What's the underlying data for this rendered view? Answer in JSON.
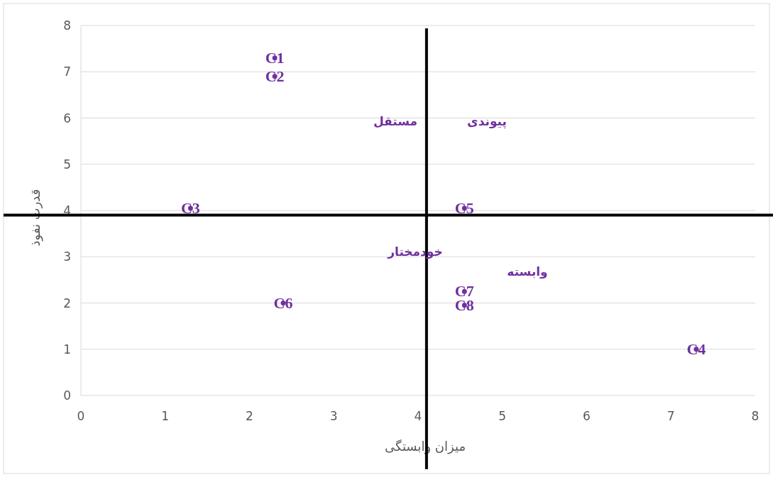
{
  "chart_data": {
    "type": "scatter",
    "xlabel": "میزان وابستگی",
    "ylabel": "قدرت نفوذ",
    "xlim": [
      0,
      8
    ],
    "ylim": [
      0,
      8
    ],
    "xticks": [
      0,
      1,
      2,
      3,
      4,
      5,
      6,
      7,
      8
    ],
    "yticks": [
      0,
      1,
      2,
      3,
      4,
      5,
      6,
      7,
      8
    ],
    "grid": "y",
    "marker": "circle",
    "series": [
      {
        "name": "C1",
        "color": "#7030a0",
        "x": [
          2.3
        ],
        "values": [
          7.3
        ]
      },
      {
        "name": "C2",
        "color": "#7030a0",
        "x": [
          2.3
        ],
        "values": [
          6.9
        ]
      },
      {
        "name": "C3",
        "color": "#7030a0",
        "x": [
          1.3
        ],
        "values": [
          4.05
        ]
      },
      {
        "name": "C4",
        "color": "#7030a0",
        "x": [
          7.3
        ],
        "values": [
          1.0
        ]
      },
      {
        "name": "C5",
        "color": "#7030a0",
        "x": [
          4.55
        ],
        "values": [
          4.05
        ]
      },
      {
        "name": "C6",
        "color": "#7030a0",
        "x": [
          2.4
        ],
        "values": [
          2.0
        ]
      },
      {
        "name": "C7",
        "color": "#7030a0",
        "x": [
          4.55
        ],
        "values": [
          2.25
        ]
      },
      {
        "name": "C8",
        "color": "#7030a0",
        "x": [
          4.55
        ],
        "values": [
          1.95
        ]
      }
    ],
    "annotations": [
      "مستقل",
      "پیوندی",
      "خودمختار",
      "وابسته"
    ],
    "ref_lines": [
      {
        "axis": "x",
        "value": 4.1,
        "color": "#000000"
      },
      {
        "axis": "y",
        "value": 3.9,
        "color": "#000000"
      }
    ]
  }
}
